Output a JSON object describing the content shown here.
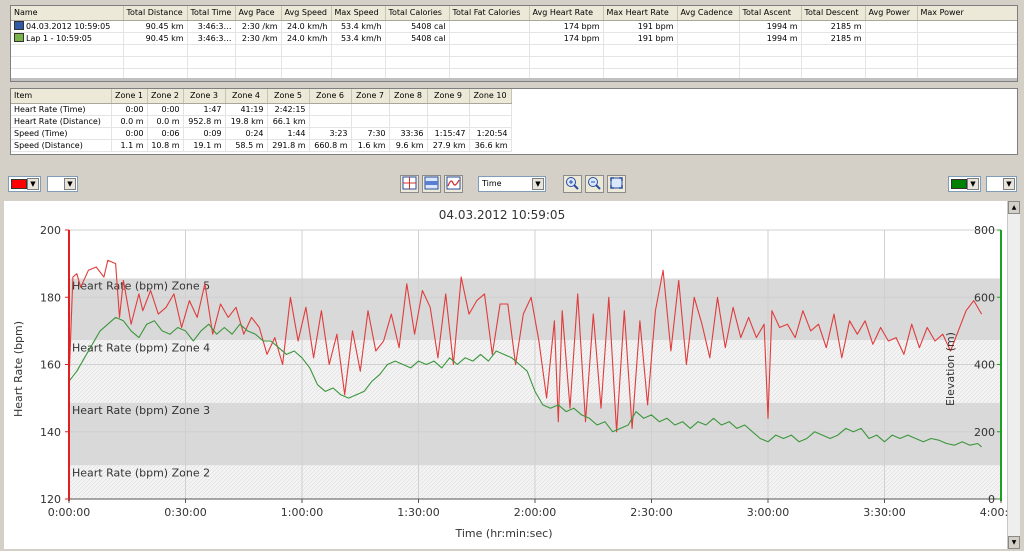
{
  "summary": {
    "columns": [
      "Name",
      "Total Distance",
      "Total Time",
      "Avg Pace",
      "Avg Speed",
      "Max Speed",
      "Total Calories",
      "Total Fat Calories",
      "Avg Heart Rate",
      "Max Heart Rate",
      "Avg Cadence",
      "Total Ascent",
      "Total Descent",
      "Avg Power",
      "Max Power"
    ],
    "rows": [
      {
        "name": "04.03.2012 10:59:05",
        "icon": "activity-icon",
        "total_distance": "90.45 km",
        "total_time": "3:46:3…",
        "avg_pace": "2:30 /km",
        "avg_speed": "24.0 km/h",
        "max_speed": "53.4 km/h",
        "total_calories": "5408 cal",
        "total_fat_calories": "",
        "avg_hr": "174 bpm",
        "max_hr": "191 bpm",
        "avg_cadence": "",
        "total_ascent": "1994 m",
        "total_descent": "2185 m",
        "avg_power": "",
        "max_power": ""
      },
      {
        "name": "Lap 1 - 10:59:05",
        "icon": "lap-icon",
        "total_distance": "90.45 km",
        "total_time": "3:46:3…",
        "avg_pace": "2:30 /km",
        "avg_speed": "24.0 km/h",
        "max_speed": "53.4 km/h",
        "total_calories": "5408 cal",
        "total_fat_calories": "",
        "avg_hr": "174 bpm",
        "max_hr": "191 bpm",
        "avg_cadence": "",
        "total_ascent": "1994 m",
        "total_descent": "2185 m",
        "avg_power": "",
        "max_power": ""
      }
    ]
  },
  "zones": {
    "columns": [
      "Item",
      "Zone 1",
      "Zone 2",
      "Zone 3",
      "Zone 4",
      "Zone 5",
      "Zone 6",
      "Zone 7",
      "Zone 8",
      "Zone 9",
      "Zone 10"
    ],
    "rows": [
      {
        "item": "Heart Rate (Time)",
        "values": [
          "0:00",
          "0:00",
          "1:47",
          "41:19",
          "2:42:15",
          "",
          "",
          "",
          "",
          ""
        ]
      },
      {
        "item": "Heart Rate (Distance)",
        "values": [
          "0.0 m",
          "0.0 m",
          "952.8 m",
          "19.8 km",
          "66.1 km",
          "",
          "",
          "",
          "",
          ""
        ]
      },
      {
        "item": "Speed (Time)",
        "values": [
          "0:00",
          "0:06",
          "0:09",
          "0:24",
          "1:44",
          "3:23",
          "7:30",
          "33:36",
          "1:15:47",
          "1:20:54"
        ]
      },
      {
        "item": "Speed (Distance)",
        "values": [
          "1.1 m",
          "10.8 m",
          "19.1 m",
          "58.5 m",
          "291.8 m",
          "660.8 m",
          "1.6 km",
          "9.6 km",
          "27.9 km",
          "36.6 km"
        ]
      }
    ]
  },
  "toolbar": {
    "left_color": "#ff0000",
    "right_color": "#008000",
    "x_axis_mode": "Time",
    "icons": [
      "crosshair-icon",
      "range-select-icon",
      "smooth-line-icon",
      "zoom-in-icon",
      "zoom-out-icon",
      "zoom-fit-icon"
    ]
  },
  "chart_data": {
    "type": "line",
    "title": "04.03.2012 10:59:05",
    "xlabel": "Time (hr:min:sec)",
    "ylabel": "Heart Rate (bpm)",
    "y2label": "Elevation (m)",
    "xlim": [
      0,
      240
    ],
    "ylim": [
      120,
      200
    ],
    "y2lim": [
      0,
      800
    ],
    "x_ticks": [
      "0:00:00",
      "0:30:00",
      "1:00:00",
      "1:30:00",
      "2:00:00",
      "2:30:00",
      "3:00:00",
      "3:30:00",
      "4:00:00"
    ],
    "y_ticks": [
      "120",
      "140",
      "160",
      "180",
      "200"
    ],
    "y2_ticks": [
      "0",
      "200",
      "400",
      "600",
      "800"
    ],
    "grid": true,
    "zones": [
      {
        "label": "Heart Rate (bpm) Zone 5",
        "from": 167.2,
        "to": 185.6
      },
      {
        "label": "Heart Rate (bpm) Zone 4",
        "from": 148.6,
        "to": 167.2
      },
      {
        "label": "Heart Rate (bpm) Zone 3",
        "from": 130.0,
        "to": 148.6
      },
      {
        "label": "Heart Rate (bpm) Zone 2",
        "from": 120.0,
        "to": 130.0
      }
    ],
    "series": [
      {
        "color": "#e03c3c",
        "axis": "left",
        "x": [
          0,
          1,
          2,
          3,
          5,
          7,
          9,
          10,
          12,
          13,
          14,
          16,
          18,
          19,
          21,
          23,
          25,
          27,
          29,
          31,
          33,
          35,
          37,
          39,
          41,
          43,
          45,
          47,
          49,
          51,
          53,
          55,
          57,
          59,
          61,
          63,
          65,
          67,
          69,
          71,
          73,
          75,
          77,
          79,
          81,
          83,
          85,
          87,
          89,
          91,
          93,
          95,
          97,
          99,
          101,
          103,
          105,
          107,
          109,
          111,
          113,
          115,
          117,
          119,
          121,
          123,
          125,
          126,
          127,
          129,
          131,
          133,
          135,
          137,
          139,
          141,
          143,
          145,
          147,
          149,
          151,
          153,
          155,
          157,
          159,
          161,
          163,
          165,
          167,
          169,
          171,
          173,
          175,
          177,
          179,
          180,
          181,
          183,
          185,
          187,
          189,
          191,
          193,
          195,
          197,
          199,
          201,
          203,
          205,
          207,
          209,
          211,
          213,
          215,
          217,
          219,
          221,
          223,
          225,
          227,
          229,
          231,
          233,
          235
        ],
        "y": [
          155,
          186,
          187,
          183,
          188,
          189,
          186,
          191,
          190,
          174,
          185,
          172,
          181,
          176,
          182,
          175,
          177,
          181,
          171,
          179,
          174,
          184,
          169,
          178,
          174,
          177,
          169,
          174,
          171,
          163,
          168,
          160,
          180,
          167,
          177,
          162,
          176,
          160,
          169,
          151,
          170,
          158,
          176,
          164,
          167,
          175,
          165,
          184,
          169,
          182,
          177,
          162,
          181,
          160,
          186,
          175,
          179,
          181,
          163,
          178,
          178,
          160,
          175,
          180,
          167,
          150,
          173,
          143,
          176,
          147,
          181,
          143,
          175,
          147,
          180,
          140,
          176,
          141,
          173,
          148,
          176,
          188,
          164,
          185,
          160,
          180,
          172,
          162,
          180,
          165,
          177,
          168,
          174,
          168,
          172,
          144,
          176,
          171,
          172,
          168,
          176,
          170,
          172,
          165,
          175,
          162,
          173,
          169,
          173,
          166,
          171,
          167,
          168,
          163,
          172,
          165,
          171,
          167,
          169,
          164,
          170,
          176,
          179,
          175
        ]
      },
      {
        "color": "#3c963c",
        "axis": "right",
        "x": [
          0,
          2,
          4,
          6,
          8,
          10,
          12,
          14,
          16,
          18,
          20,
          22,
          24,
          26,
          28,
          30,
          32,
          34,
          36,
          38,
          40,
          42,
          44,
          46,
          48,
          50,
          52,
          54,
          56,
          58,
          60,
          62,
          64,
          66,
          68,
          70,
          72,
          74,
          76,
          78,
          80,
          82,
          84,
          86,
          88,
          90,
          92,
          94,
          96,
          98,
          100,
          102,
          104,
          106,
          108,
          110,
          112,
          114,
          116,
          118,
          120,
          122,
          124,
          126,
          128,
          130,
          132,
          134,
          136,
          138,
          140,
          142,
          144,
          146,
          148,
          150,
          152,
          154,
          156,
          158,
          160,
          162,
          164,
          166,
          168,
          170,
          172,
          174,
          176,
          178,
          180,
          182,
          184,
          186,
          188,
          190,
          192,
          194,
          196,
          198,
          200,
          202,
          204,
          206,
          208,
          210,
          212,
          214,
          216,
          218,
          220,
          222,
          224,
          226,
          228,
          230,
          232,
          234,
          235
        ],
        "y": [
          350,
          380,
          420,
          460,
          500,
          520,
          540,
          530,
          500,
          480,
          520,
          530,
          500,
          490,
          510,
          500,
          470,
          500,
          520,
          490,
          510,
          490,
          520,
          500,
          490,
          470,
          470,
          450,
          430,
          440,
          420,
          390,
          340,
          320,
          330,
          310,
          300,
          310,
          320,
          350,
          370,
          400,
          410,
          400,
          390,
          410,
          400,
          410,
          390,
          420,
          400,
          420,
          410,
          430,
          410,
          440,
          430,
          420,
          400,
          380,
          320,
          280,
          270,
          280,
          260,
          270,
          250,
          240,
          220,
          230,
          200,
          210,
          220,
          260,
          240,
          250,
          230,
          240,
          220,
          230,
          210,
          230,
          220,
          240,
          220,
          230,
          210,
          220,
          200,
          180,
          170,
          190,
          180,
          190,
          170,
          180,
          200,
          190,
          180,
          190,
          210,
          200,
          210,
          180,
          190,
          170,
          190,
          180,
          190,
          180,
          170,
          180,
          175,
          165,
          160,
          170,
          160,
          165,
          155
        ]
      }
    ]
  }
}
